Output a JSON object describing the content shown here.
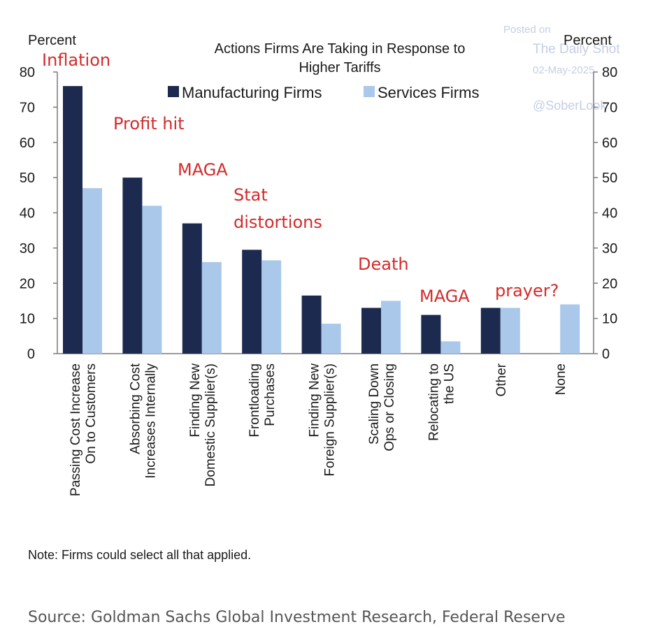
{
  "chart_data": {
    "type": "bar",
    "title_line1": "Actions Firms Are Taking in Response to",
    "title_line2": "Higher Tariffs",
    "ylabel_left": "Percent",
    "ylabel_right": "Percent",
    "ylim": [
      0,
      80
    ],
    "yticks": [
      "0",
      "10",
      "20",
      "30",
      "40",
      "50",
      "60",
      "70",
      "80"
    ],
    "categories": [
      [
        "Passing Cost Increase",
        "On to Customers"
      ],
      [
        "Absorbing Cost",
        "Increases Internally"
      ],
      [
        "Finding New",
        "Domestic Supplier(s)"
      ],
      [
        "Frontloading",
        "Purchases"
      ],
      [
        "Finding New",
        "Foreign Supplier(s)"
      ],
      [
        "Scaling Down",
        "Ops or Closing"
      ],
      [
        "Relocating to",
        "the US"
      ],
      [
        "Other"
      ],
      [
        "None"
      ]
    ],
    "series": [
      {
        "name": "Manufacturing Firms",
        "color": "#1b2a4e",
        "values": [
          76,
          50,
          37,
          29.5,
          16.5,
          13,
          11,
          13,
          null
        ]
      },
      {
        "name": "Services Firms",
        "color": "#a9c8ea",
        "values": [
          47,
          42,
          26,
          26.5,
          8.5,
          15,
          3.5,
          13,
          14
        ]
      }
    ],
    "legend_placement": "top-center",
    "annotations": [
      "Inflation",
      "Profit hit",
      "MAGA",
      "Stat distortions",
      "Death",
      "MAGA",
      "prayer?"
    ],
    "annotation_color": "#d42a2a"
  },
  "watermark": {
    "posted_on": "Posted on",
    "source_name": "The Daily Shot",
    "date": "02-May-2025",
    "handle": "@SoberLook"
  },
  "note": "Note: Firms could select all that applied.",
  "source": "Source: Goldman Sachs Global Investment Research, Federal Reserve"
}
